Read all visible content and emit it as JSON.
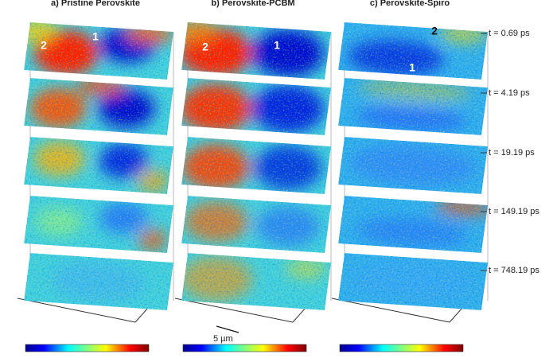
{
  "panels": [
    {
      "title": "a) Pristine Perovskite",
      "regions": [
        "2",
        "1"
      ]
    },
    {
      "title": "b) Perovskite-PCBM",
      "regions": [
        "2",
        "1"
      ],
      "scale_bar": "5 µm"
    },
    {
      "title": "c) Perovskite-Spiro",
      "regions": [
        "2",
        "1"
      ]
    }
  ],
  "times": [
    "t = 0.69 ps",
    "t = 4.19 ps",
    "t = 19.19 ps",
    "t = 149.19 ps",
    "t = 748.19 ps"
  ]
}
